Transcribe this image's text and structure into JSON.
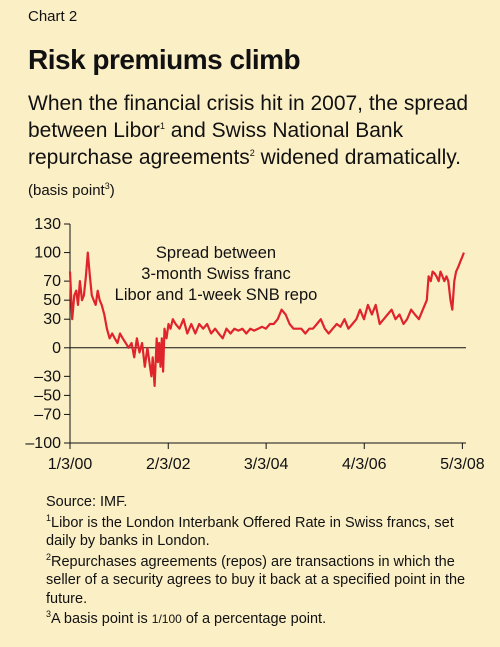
{
  "header": {
    "kicker": "Chart 2",
    "title": "Risk premiums climb",
    "subtitle_a": "When the financial crisis hit in 2007, the spread between Libor",
    "subtitle_sup1": "1",
    "subtitle_b": " and Swiss National Bank repurchase agreements",
    "subtitle_sup2": "2",
    "subtitle_c": " widened dramatically.",
    "unit_a": "(basis point",
    "unit_sup": "3",
    "unit_b": ")"
  },
  "notes": {
    "source": "Source: IMF.",
    "note1_sup": "1",
    "note1": "Libor is the London Interbank Offered Rate in Swiss francs, set daily by banks in London.",
    "note2_sup": "2",
    "note2": "Repurchases agreements (repos) are transactions in which the seller of a security agrees to buy it back at a specified point in the future.",
    "note3_sup": "3",
    "note3_a": "A basis point is ",
    "note3_frac": "1/100",
    "note3_b": " of a percentage point."
  },
  "colors": {
    "line": "#e0242c",
    "background": "#fbefc6",
    "axis": "#111111"
  },
  "chart_data": {
    "type": "line",
    "annotation": [
      "Spread between",
      "3-month Swiss franc",
      "Libor and 1-week SNB repo"
    ],
    "ylim": [
      -100,
      130
    ],
    "yticks": [
      130,
      100,
      70,
      50,
      30,
      0,
      -30,
      -50,
      -70,
      -100
    ],
    "ytick_labels": [
      "130",
      "100",
      "70",
      "50",
      "30",
      "0",
      "–30",
      "–50",
      "–70",
      "–100"
    ],
    "xlim": [
      "2000-01-03",
      "2008-05-31"
    ],
    "xticks": [
      "2000-01-03",
      "2002-02-03",
      "2004-03-03",
      "2006-04-03",
      "2008-05-03"
    ],
    "xtick_labels": [
      "1/3/00",
      "2/3/02",
      "3/3/04",
      "4/3/06",
      "5/3/08"
    ],
    "grid": false,
    "series": [
      {
        "x": [
          "2000-01-03",
          "2000-01-20",
          "2000-02-05",
          "2000-02-20",
          "2000-03-05",
          "2000-03-20",
          "2000-04-05",
          "2000-04-20",
          "2000-05-05",
          "2000-05-20",
          "2000-06-05",
          "2000-06-20",
          "2000-07-05",
          "2000-07-20",
          "2000-08-05",
          "2000-08-20",
          "2000-09-05",
          "2000-09-25",
          "2000-10-15",
          "2000-11-05",
          "2000-11-25",
          "2000-12-15",
          "2001-01-05",
          "2001-01-25",
          "2001-02-15",
          "2001-03-10",
          "2001-04-01",
          "2001-04-25",
          "2001-05-15",
          "2001-06-05",
          "2001-06-25",
          "2001-07-15",
          "2001-08-05",
          "2001-08-25",
          "2001-09-10",
          "2001-09-25",
          "2001-10-05",
          "2001-10-20",
          "2001-11-05",
          "2001-11-15",
          "2001-11-25",
          "2001-12-05",
          "2001-12-15",
          "2001-12-25",
          "2002-01-05",
          "2002-01-20",
          "2002-02-05",
          "2002-02-20",
          "2002-03-10",
          "2002-04-01",
          "2002-05-01",
          "2002-06-01",
          "2002-07-01",
          "2002-08-01",
          "2002-09-01",
          "2002-10-01",
          "2002-11-01",
          "2002-12-01",
          "2003-01-01",
          "2003-02-01",
          "2003-03-01",
          "2003-04-01",
          "2003-05-01",
          "2003-06-01",
          "2003-07-01",
          "2003-08-01",
          "2003-09-01",
          "2003-10-01",
          "2003-11-01",
          "2003-12-01",
          "2004-01-01",
          "2004-02-01",
          "2004-03-01",
          "2004-04-01",
          "2004-05-01",
          "2004-06-01",
          "2004-07-01",
          "2004-08-01",
          "2004-09-01",
          "2004-10-01",
          "2004-11-01",
          "2004-12-01",
          "2005-01-01",
          "2005-02-01",
          "2005-03-01",
          "2005-04-01",
          "2005-05-01",
          "2005-06-01",
          "2005-07-01",
          "2005-08-01",
          "2005-09-01",
          "2005-10-01",
          "2005-11-01",
          "2005-12-01",
          "2006-01-01",
          "2006-02-01",
          "2006-03-01",
          "2006-04-01",
          "2006-05-01",
          "2006-06-01",
          "2006-07-01",
          "2006-08-01",
          "2006-09-01",
          "2006-10-01",
          "2006-11-01",
          "2006-12-01",
          "2007-01-01",
          "2007-02-01",
          "2007-03-01",
          "2007-04-01",
          "2007-05-01",
          "2007-06-01",
          "2007-07-01",
          "2007-08-01",
          "2007-08-15",
          "2007-09-01",
          "2007-09-15",
          "2007-10-01",
          "2007-10-15",
          "2007-11-01",
          "2007-11-15",
          "2007-12-01",
          "2007-12-15",
          "2008-01-01",
          "2008-01-15",
          "2008-02-01",
          "2008-02-15",
          "2008-03-01",
          "2008-03-15",
          "2008-04-01",
          "2008-04-15",
          "2008-05-01",
          "2008-05-15"
        ],
        "values": [
          80,
          30,
          55,
          60,
          45,
          70,
          50,
          55,
          75,
          100,
          75,
          55,
          50,
          45,
          60,
          50,
          45,
          35,
          20,
          10,
          15,
          10,
          5,
          15,
          10,
          5,
          0,
          5,
          -10,
          10,
          -5,
          5,
          -20,
          0,
          -15,
          -30,
          -10,
          -40,
          10,
          -15,
          5,
          -20,
          10,
          -25,
          20,
          10,
          25,
          20,
          30,
          25,
          20,
          30,
          15,
          25,
          15,
          25,
          20,
          25,
          15,
          20,
          15,
          10,
          20,
          15,
          20,
          18,
          20,
          15,
          20,
          18,
          20,
          22,
          20,
          25,
          25,
          30,
          40,
          35,
          25,
          20,
          20,
          20,
          15,
          20,
          20,
          25,
          30,
          20,
          15,
          20,
          25,
          22,
          30,
          20,
          25,
          30,
          40,
          30,
          45,
          35,
          45,
          25,
          30,
          35,
          40,
          30,
          35,
          25,
          30,
          40,
          35,
          30,
          40,
          50,
          75,
          70,
          80,
          78,
          75,
          70,
          80,
          75,
          70,
          75,
          70,
          50,
          40,
          70,
          80,
          85,
          90,
          95,
          100
        ]
      }
    ]
  }
}
